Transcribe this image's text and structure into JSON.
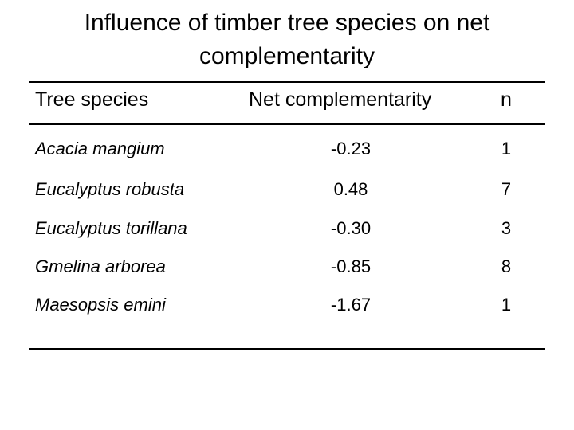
{
  "title": {
    "line1": "Influence of timber tree species on net",
    "line2": "complementarity"
  },
  "table": {
    "headers": {
      "species": "Tree species",
      "net": "Net complementarity",
      "n": "n"
    },
    "rows": [
      {
        "species": "Acacia mangium",
        "net": "-0.23",
        "n": "1"
      },
      {
        "species": "Eucalyptus robusta",
        "net": "0.48",
        "n": "7"
      },
      {
        "species": "Eucalyptus torillana",
        "net": "-0.30",
        "n": "3"
      },
      {
        "species": "Gmelina arborea",
        "net": "-0.85",
        "n": "8"
      },
      {
        "species": "Maesopsis emini",
        "net": "-1.67",
        "n": "1"
      }
    ]
  }
}
